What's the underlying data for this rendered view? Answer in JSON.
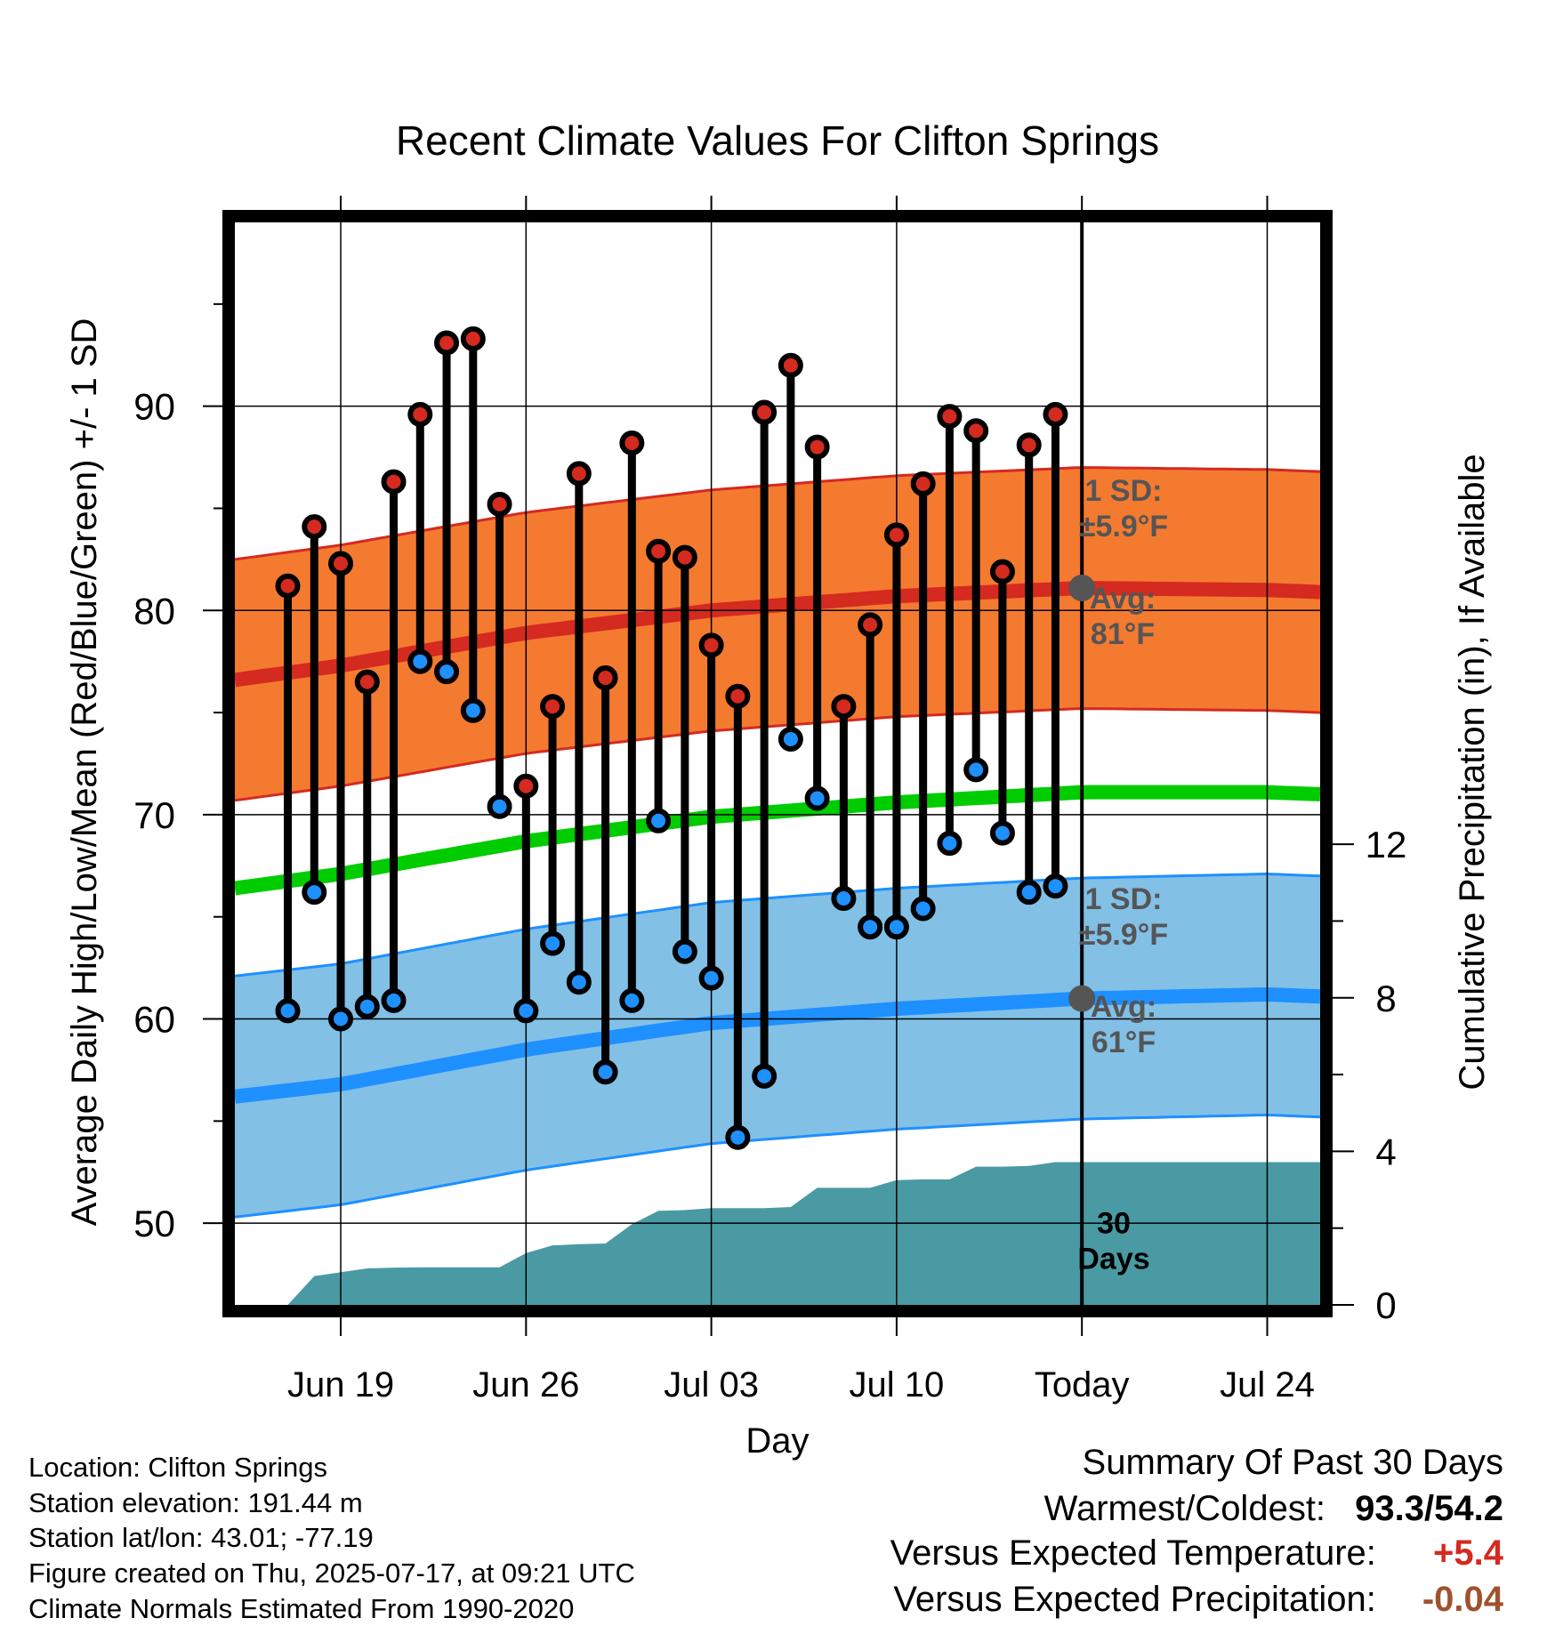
{
  "info": {
    "location": "Location: Clifton Springs",
    "elevation": "Station elevation: 191.44 m",
    "latlon": "Station lat/lon: 43.01; -77.19",
    "created": "Figure created on Thu, 2025-07-17, at 09:21 UTC",
    "normals": "Climate Normals Estimated From 1990-2020"
  },
  "summary": {
    "title": "Summary Of Past 30 Days",
    "warm_cold_label": "Warmest/Coldest:",
    "warm_cold_value": "93.3/54.2",
    "temp_label": "Versus Expected Temperature:",
    "temp_value": "+5.4",
    "precip_label": "Versus Expected Precipitation:",
    "precip_value": "-0.04"
  },
  "colors": {
    "high_band": "#f47a30",
    "high_line": "#d42a20",
    "low_band": "#82c0e6",
    "low_line": "#1e90ff",
    "mean_line": "#00cc00",
    "precip": "#4a9aa4",
    "high_dot": "#d42a20",
    "low_dot": "#1e90ff",
    "annotation": "#555555",
    "temp_anomaly": "#d42a20",
    "precip_anomaly": "#a0522d"
  },
  "chart_data": {
    "type": "line",
    "title": "Recent Climate Values For Clifton Springs",
    "xlabel": "Day",
    "ylabel": "Average Daily High/Low/Mean (Red/Blue/Green) +/- 1 SD",
    "y2label": "Cumulative Precipitation (in), If Available",
    "ylim": [
      46,
      99
    ],
    "y2lim": [
      0,
      28.2
    ],
    "xlim": [
      "2025-06-15",
      "2025-07-26"
    ],
    "yticks": [
      50,
      60,
      70,
      80,
      90
    ],
    "y2ticks": [
      0,
      4,
      8,
      12
    ],
    "xticks": [
      {
        "date": "2025-06-19",
        "label": "Jun 19"
      },
      {
        "date": "2025-06-26",
        "label": "Jun 26"
      },
      {
        "date": "2025-07-03",
        "label": "Jul 03"
      },
      {
        "date": "2025-07-10",
        "label": "Jul 10"
      },
      {
        "date": "2025-07-17",
        "label": "Today"
      },
      {
        "date": "2025-07-24",
        "label": "Jul 24"
      }
    ],
    "grid": true,
    "today": "2025-07-17",
    "days": [
      "2025-06-17",
      "2025-06-18",
      "2025-06-19",
      "2025-06-20",
      "2025-06-21",
      "2025-06-22",
      "2025-06-23",
      "2025-06-24",
      "2025-06-25",
      "2025-06-26",
      "2025-06-27",
      "2025-06-28",
      "2025-06-29",
      "2025-06-30",
      "2025-07-01",
      "2025-07-02",
      "2025-07-03",
      "2025-07-04",
      "2025-07-05",
      "2025-07-06",
      "2025-07-07",
      "2025-07-08",
      "2025-07-09",
      "2025-07-10",
      "2025-07-11",
      "2025-07-12",
      "2025-07-13",
      "2025-07-14",
      "2025-07-15",
      "2025-07-16"
    ],
    "highs": [
      81.2,
      84.1,
      82.3,
      76.5,
      86.3,
      89.6,
      93.1,
      93.3,
      85.2,
      71.4,
      75.3,
      86.7,
      76.7,
      88.2,
      82.9,
      82.6,
      78.3,
      75.8,
      89.7,
      92.0,
      88.0,
      75.3,
      79.3,
      83.7,
      86.2,
      89.5,
      88.8,
      81.9,
      88.1,
      89.6
    ],
    "lows": [
      60.4,
      66.2,
      60.0,
      60.6,
      60.9,
      77.5,
      77.0,
      75.1,
      70.4,
      60.4,
      63.7,
      61.8,
      57.4,
      60.9,
      69.7,
      63.3,
      62.0,
      54.2,
      57.2,
      73.7,
      70.8,
      65.9,
      64.5,
      64.5,
      65.4,
      68.6,
      72.2,
      69.1,
      66.2,
      66.5
    ],
    "normals": {
      "dates": [
        "2025-06-15",
        "2025-06-19",
        "2025-06-26",
        "2025-07-03",
        "2025-07-10",
        "2025-07-17",
        "2025-07-24",
        "2025-07-26"
      ],
      "high_avg": [
        76.6,
        77.3,
        78.9,
        80.0,
        80.7,
        81.1,
        81.0,
        80.9
      ],
      "low_avg": [
        56.2,
        56.8,
        58.5,
        59.8,
        60.5,
        61.0,
        61.2,
        61.1
      ],
      "mean_avg": [
        66.4,
        67.1,
        68.7,
        69.9,
        70.6,
        71.1,
        71.1,
        71.0
      ],
      "sd": 5.9
    },
    "precip": {
      "dates": [
        "2025-06-16",
        "2025-06-17",
        "2025-06-18",
        "2025-06-19",
        "2025-06-20",
        "2025-06-21",
        "2025-06-22",
        "2025-06-23",
        "2025-06-24",
        "2025-06-25",
        "2025-06-26",
        "2025-06-27",
        "2025-06-28",
        "2025-06-29",
        "2025-06-30",
        "2025-07-01",
        "2025-07-02",
        "2025-07-03",
        "2025-07-04",
        "2025-07-05",
        "2025-07-06",
        "2025-07-07",
        "2025-07-08",
        "2025-07-09",
        "2025-07-10",
        "2025-07-11",
        "2025-07-12",
        "2025-07-13",
        "2025-07-14",
        "2025-07-15",
        "2025-07-16",
        "2025-07-26"
      ],
      "cumulative": [
        0.0,
        0.0,
        0.75,
        0.85,
        0.95,
        0.97,
        0.98,
        0.98,
        0.98,
        0.98,
        1.35,
        1.55,
        1.58,
        1.6,
        2.1,
        2.45,
        2.47,
        2.52,
        2.52,
        2.52,
        2.55,
        3.05,
        3.05,
        3.05,
        3.25,
        3.27,
        3.27,
        3.6,
        3.6,
        3.62,
        3.72,
        3.72
      ]
    },
    "annotations": {
      "high_sd": [
        "1 SD:",
        "±5.9°F"
      ],
      "high_avg": [
        "Avg:",
        "81°F"
      ],
      "low_sd": [
        "1 SD:",
        "±5.9°F"
      ],
      "low_avg": [
        "Avg:",
        "61°F"
      ],
      "window": [
        "30",
        "Days"
      ]
    }
  }
}
